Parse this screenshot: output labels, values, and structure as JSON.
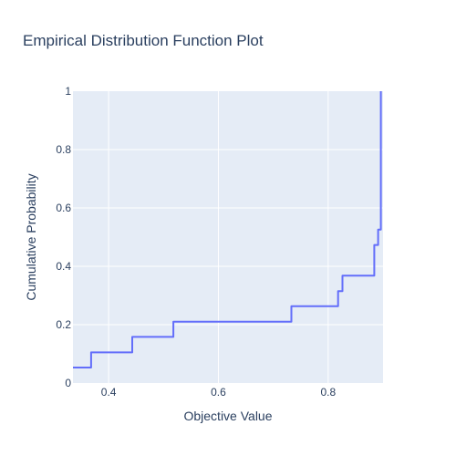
{
  "chart_data": {
    "type": "line",
    "line_shape": "step",
    "title": "Empirical Distribution Function Plot",
    "xlabel": "Objective Value",
    "ylabel": "Cumulative Probability",
    "xlim": [
      0.335,
      0.9
    ],
    "ylim": [
      0,
      1
    ],
    "x_ticks": [
      0.4,
      0.6,
      0.8
    ],
    "x_tick_labels": [
      "0.4",
      "0.6",
      "0.8"
    ],
    "y_ticks": [
      0,
      0.2,
      0.4,
      0.6,
      0.8,
      1
    ],
    "y_tick_labels": [
      "0",
      "0.2",
      "0.4",
      "0.6",
      "0.8",
      "1"
    ],
    "grid": true,
    "legend": false,
    "series": [
      {
        "x": [
          0.335,
          0.368,
          0.443,
          0.518,
          0.733,
          0.818,
          0.826,
          0.884,
          0.891,
          0.896
        ],
        "y": [
          0.053,
          0.105,
          0.158,
          0.21,
          0.263,
          0.315,
          0.368,
          0.473,
          0.526,
          1.0
        ],
        "color": "#636efa"
      }
    ],
    "colors": {
      "plot_bg": "#e5ecf6",
      "grid": "#ffffff",
      "text": "#2a3f5f",
      "line": "#636efa"
    }
  }
}
